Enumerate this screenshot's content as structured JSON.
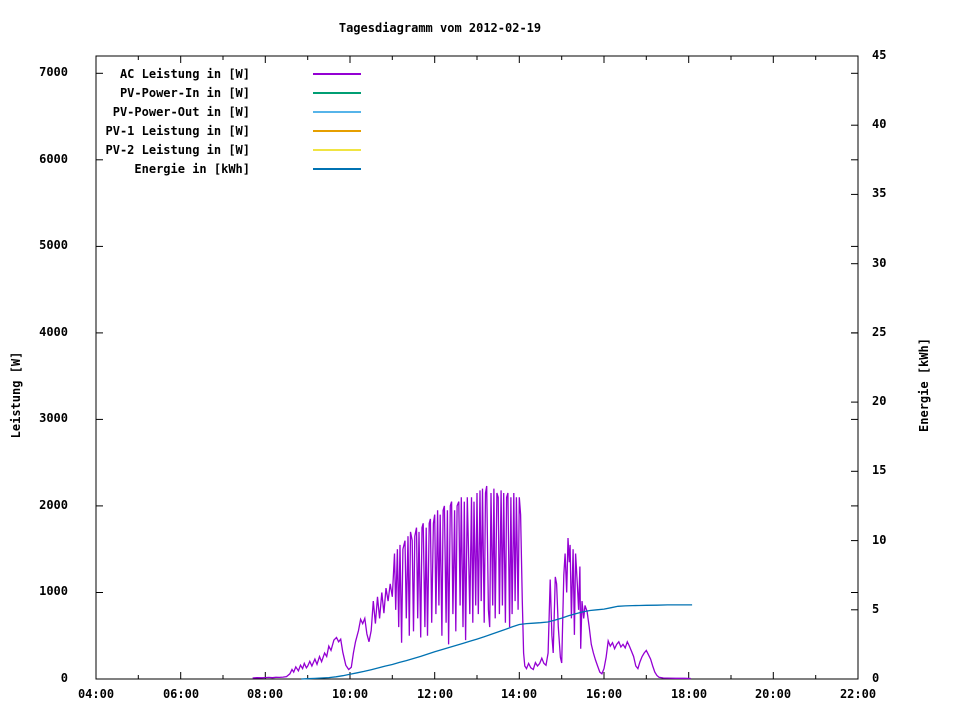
{
  "title": "Tagesdiagramm vom 2012-02-19",
  "axes": {
    "left": {
      "label": "Leistung [W]",
      "ticks": [
        0,
        1000,
        2000,
        3000,
        4000,
        5000,
        6000,
        7000
      ],
      "range": [
        0,
        7200
      ]
    },
    "right": {
      "label": "Energie [kWh]",
      "ticks": [
        0,
        5,
        10,
        15,
        20,
        25,
        30,
        35,
        40,
        45
      ],
      "range": [
        0,
        45
      ]
    },
    "x": {
      "major_labels": [
        "04:00",
        "06:00",
        "08:00",
        "10:00",
        "12:00",
        "14:00",
        "16:00",
        "18:00",
        "20:00",
        "22:00"
      ],
      "range_hours": [
        4,
        22
      ]
    }
  },
  "legend": {
    "items": [
      {
        "label": "AC Leistung in [W]",
        "color": "#9400d3"
      },
      {
        "label": "PV-Power-In in [W]",
        "color": "#009e73"
      },
      {
        "label": "PV-Power-Out in [W]",
        "color": "#56b4e9"
      },
      {
        "label": "PV-1 Leistung in [W]",
        "color": "#e69f00"
      },
      {
        "label": "PV-2 Leistung in [W]",
        "color": "#f0e442"
      },
      {
        "label": "Energie in [kWh]",
        "color": "#0072b2"
      }
    ]
  },
  "chart_data": {
    "type": "line",
    "title": "Tagesdiagramm vom 2012-02-19",
    "xlabel": "",
    "x_unit": "time (hours, 04:00-22:00)",
    "ylabel_left": "Leistung [W]",
    "ylabel_right": "Energie [kWh]",
    "ylim_left": [
      0,
      7200
    ],
    "ylim_right": [
      0,
      45
    ],
    "grid": false,
    "legend_position": "top-left inside",
    "series": [
      {
        "id": "ac-leistung",
        "name": "AC Leistung in [W]",
        "color": "#9400d3",
        "axis": "left",
        "points": [
          [
            7.7,
            12
          ],
          [
            7.8,
            15
          ],
          [
            7.92,
            14
          ],
          [
            8.0,
            16
          ],
          [
            8.08,
            18
          ],
          [
            8.17,
            15
          ],
          [
            8.25,
            20
          ],
          [
            8.33,
            18
          ],
          [
            8.42,
            22
          ],
          [
            8.5,
            28
          ],
          [
            8.58,
            60
          ],
          [
            8.63,
            110
          ],
          [
            8.67,
            80
          ],
          [
            8.72,
            140
          ],
          [
            8.78,
            95
          ],
          [
            8.83,
            160
          ],
          [
            8.88,
            120
          ],
          [
            8.92,
            180
          ],
          [
            8.97,
            130
          ],
          [
            9.0,
            150
          ],
          [
            9.05,
            205
          ],
          [
            9.1,
            150
          ],
          [
            9.17,
            230
          ],
          [
            9.22,
            170
          ],
          [
            9.28,
            260
          ],
          [
            9.33,
            200
          ],
          [
            9.4,
            300
          ],
          [
            9.45,
            260
          ],
          [
            9.5,
            380
          ],
          [
            9.55,
            330
          ],
          [
            9.62,
            450
          ],
          [
            9.68,
            480
          ],
          [
            9.73,
            430
          ],
          [
            9.78,
            460
          ],
          [
            9.83,
            310
          ],
          [
            9.9,
            160
          ],
          [
            9.97,
            110
          ],
          [
            10.03,
            135
          ],
          [
            10.08,
            300
          ],
          [
            10.13,
            430
          ],
          [
            10.2,
            560
          ],
          [
            10.25,
            690
          ],
          [
            10.3,
            640
          ],
          [
            10.35,
            700
          ],
          [
            10.4,
            520
          ],
          [
            10.45,
            430
          ],
          [
            10.5,
            560
          ],
          [
            10.55,
            900
          ],
          [
            10.6,
            640
          ],
          [
            10.65,
            950
          ],
          [
            10.7,
            700
          ],
          [
            10.75,
            1000
          ],
          [
            10.8,
            760
          ],
          [
            10.85,
            1050
          ],
          [
            10.9,
            900
          ],
          [
            10.95,
            1100
          ],
          [
            11.0,
            950
          ],
          [
            11.05,
            1450
          ],
          [
            11.08,
            800
          ],
          [
            11.12,
            1500
          ],
          [
            11.15,
            600
          ],
          [
            11.18,
            1550
          ],
          [
            11.22,
            420
          ],
          [
            11.25,
            1500
          ],
          [
            11.3,
            1600
          ],
          [
            11.33,
            700
          ],
          [
            11.37,
            1650
          ],
          [
            11.4,
            500
          ],
          [
            11.43,
            1700
          ],
          [
            11.47,
            1600
          ],
          [
            11.5,
            550
          ],
          [
            11.53,
            1650
          ],
          [
            11.57,
            1750
          ],
          [
            11.6,
            700
          ],
          [
            11.63,
            1700
          ],
          [
            11.67,
            480
          ],
          [
            11.7,
            1750
          ],
          [
            11.73,
            1800
          ],
          [
            11.77,
            600
          ],
          [
            11.8,
            1750
          ],
          [
            11.83,
            500
          ],
          [
            11.87,
            1800
          ],
          [
            11.9,
            1850
          ],
          [
            11.93,
            650
          ],
          [
            11.97,
            1800
          ],
          [
            12.0,
            1900
          ],
          [
            12.03,
            750
          ],
          [
            12.07,
            1950
          ],
          [
            12.1,
            850
          ],
          [
            12.13,
            1900
          ],
          [
            12.17,
            500
          ],
          [
            12.2,
            1950
          ],
          [
            12.23,
            2000
          ],
          [
            12.27,
            650
          ],
          [
            12.3,
            1950
          ],
          [
            12.33,
            400
          ],
          [
            12.37,
            2000
          ],
          [
            12.4,
            2050
          ],
          [
            12.43,
            750
          ],
          [
            12.47,
            1950
          ],
          [
            12.5,
            550
          ],
          [
            12.53,
            2000
          ],
          [
            12.57,
            2050
          ],
          [
            12.6,
            850
          ],
          [
            12.63,
            2100
          ],
          [
            12.67,
            600
          ],
          [
            12.7,
            2050
          ],
          [
            12.73,
            450
          ],
          [
            12.77,
            2100
          ],
          [
            12.8,
            1500
          ],
          [
            12.83,
            750
          ],
          [
            12.87,
            2100
          ],
          [
            12.9,
            650
          ],
          [
            12.93,
            2050
          ],
          [
            12.97,
            850
          ],
          [
            13.0,
            2150
          ],
          [
            13.03,
            750
          ],
          [
            13.07,
            2180
          ],
          [
            13.1,
            900
          ],
          [
            13.13,
            2200
          ],
          [
            13.17,
            650
          ],
          [
            13.2,
            2150
          ],
          [
            13.23,
            2230
          ],
          [
            13.27,
            800
          ],
          [
            13.3,
            600
          ],
          [
            13.33,
            2150
          ],
          [
            13.37,
            850
          ],
          [
            13.4,
            2200
          ],
          [
            13.43,
            700
          ],
          [
            13.47,
            2150
          ],
          [
            13.5,
            2100
          ],
          [
            13.53,
            750
          ],
          [
            13.57,
            2180
          ],
          [
            13.6,
            850
          ],
          [
            13.63,
            2150
          ],
          [
            13.67,
            650
          ],
          [
            13.7,
            2100
          ],
          [
            13.73,
            2150
          ],
          [
            13.77,
            600
          ],
          [
            13.8,
            2100
          ],
          [
            13.83,
            750
          ],
          [
            13.87,
            2150
          ],
          [
            13.9,
            900
          ],
          [
            13.93,
            2100
          ],
          [
            13.97,
            800
          ],
          [
            14.0,
            2100
          ],
          [
            14.03,
            1900
          ],
          [
            14.07,
            900
          ],
          [
            14.1,
            300
          ],
          [
            14.13,
            150
          ],
          [
            14.17,
            120
          ],
          [
            14.22,
            180
          ],
          [
            14.27,
            130
          ],
          [
            14.33,
            110
          ],
          [
            14.38,
            190
          ],
          [
            14.43,
            150
          ],
          [
            14.48,
            180
          ],
          [
            14.53,
            240
          ],
          [
            14.58,
            180
          ],
          [
            14.63,
            160
          ],
          [
            14.68,
            300
          ],
          [
            14.73,
            1150
          ],
          [
            14.77,
            500
          ],
          [
            14.8,
            300
          ],
          [
            14.85,
            1180
          ],
          [
            14.88,
            1100
          ],
          [
            14.92,
            600
          ],
          [
            14.97,
            250
          ],
          [
            15.0,
            185
          ],
          [
            15.05,
            1200
          ],
          [
            15.08,
            1450
          ],
          [
            15.12,
            1000
          ],
          [
            15.15,
            1630
          ],
          [
            15.18,
            1350
          ],
          [
            15.2,
            1550
          ],
          [
            15.23,
            700
          ],
          [
            15.27,
            1500
          ],
          [
            15.3,
            510
          ],
          [
            15.33,
            1450
          ],
          [
            15.37,
            1100
          ],
          [
            15.4,
            800
          ],
          [
            15.43,
            1300
          ],
          [
            15.45,
            350
          ],
          [
            15.48,
            900
          ],
          [
            15.52,
            700
          ],
          [
            15.55,
            850
          ],
          [
            15.6,
            780
          ],
          [
            15.65,
            600
          ],
          [
            15.7,
            400
          ],
          [
            15.75,
            300
          ],
          [
            15.8,
            220
          ],
          [
            15.85,
            150
          ],
          [
            15.9,
            80
          ],
          [
            15.95,
            60
          ],
          [
            16.0,
            120
          ],
          [
            16.05,
            250
          ],
          [
            16.1,
            440
          ],
          [
            16.15,
            380
          ],
          [
            16.2,
            420
          ],
          [
            16.25,
            350
          ],
          [
            16.3,
            400
          ],
          [
            16.35,
            430
          ],
          [
            16.4,
            370
          ],
          [
            16.45,
            400
          ],
          [
            16.5,
            360
          ],
          [
            16.55,
            430
          ],
          [
            16.6,
            380
          ],
          [
            16.65,
            320
          ],
          [
            16.7,
            260
          ],
          [
            16.75,
            150
          ],
          [
            16.8,
            120
          ],
          [
            16.85,
            200
          ],
          [
            16.9,
            260
          ],
          [
            16.95,
            300
          ],
          [
            17.0,
            330
          ],
          [
            17.05,
            280
          ],
          [
            17.1,
            230
          ],
          [
            17.15,
            150
          ],
          [
            17.2,
            80
          ],
          [
            17.25,
            40
          ],
          [
            17.3,
            20
          ],
          [
            17.4,
            12
          ],
          [
            17.5,
            10
          ],
          [
            17.7,
            8
          ],
          [
            17.9,
            8
          ],
          [
            18.05,
            6
          ]
        ]
      },
      {
        "id": "pv-power-in",
        "name": "PV-Power-In in [W]",
        "color": "#009e73",
        "axis": "left",
        "points": []
      },
      {
        "id": "pv-power-out",
        "name": "PV-Power-Out in [W]",
        "color": "#56b4e9",
        "axis": "left",
        "points": []
      },
      {
        "id": "pv-1-leistung",
        "name": "PV-1 Leistung in [W]",
        "color": "#e69f00",
        "axis": "left",
        "points": []
      },
      {
        "id": "pv-2-leistung",
        "name": "PV-2 Leistung in [W]",
        "color": "#f0e442",
        "axis": "left",
        "points": []
      },
      {
        "id": "energie",
        "name": "Energie in [kWh]",
        "color": "#0072b2",
        "axis": "right",
        "points": [
          [
            8.85,
            0
          ],
          [
            9.0,
            0.02
          ],
          [
            9.17,
            0.04
          ],
          [
            9.33,
            0.07
          ],
          [
            9.5,
            0.1
          ],
          [
            9.67,
            0.16
          ],
          [
            9.83,
            0.24
          ],
          [
            10.0,
            0.35
          ],
          [
            10.17,
            0.45
          ],
          [
            10.33,
            0.55
          ],
          [
            10.5,
            0.67
          ],
          [
            10.67,
            0.8
          ],
          [
            10.83,
            0.93
          ],
          [
            11.0,
            1.05
          ],
          [
            11.17,
            1.2
          ],
          [
            11.33,
            1.33
          ],
          [
            11.5,
            1.48
          ],
          [
            11.67,
            1.63
          ],
          [
            11.83,
            1.8
          ],
          [
            12.0,
            1.97
          ],
          [
            12.17,
            2.12
          ],
          [
            12.33,
            2.27
          ],
          [
            12.5,
            2.42
          ],
          [
            12.67,
            2.57
          ],
          [
            12.83,
            2.72
          ],
          [
            13.0,
            2.88
          ],
          [
            13.17,
            3.05
          ],
          [
            13.33,
            3.22
          ],
          [
            13.5,
            3.4
          ],
          [
            13.67,
            3.58
          ],
          [
            13.83,
            3.76
          ],
          [
            14.0,
            3.94
          ],
          [
            14.17,
            4.0
          ],
          [
            14.33,
            4.03
          ],
          [
            14.5,
            4.07
          ],
          [
            14.67,
            4.12
          ],
          [
            14.83,
            4.25
          ],
          [
            15.0,
            4.4
          ],
          [
            15.17,
            4.58
          ],
          [
            15.33,
            4.72
          ],
          [
            15.5,
            4.85
          ],
          [
            15.67,
            4.95
          ],
          [
            15.83,
            5.0
          ],
          [
            16.0,
            5.05
          ],
          [
            16.17,
            5.15
          ],
          [
            16.33,
            5.25
          ],
          [
            16.5,
            5.28
          ],
          [
            16.67,
            5.3
          ],
          [
            16.83,
            5.31
          ],
          [
            17.0,
            5.32
          ],
          [
            17.25,
            5.33
          ],
          [
            17.5,
            5.35
          ],
          [
            17.75,
            5.35
          ],
          [
            18.0,
            5.35
          ],
          [
            18.08,
            5.35
          ]
        ]
      }
    ]
  }
}
